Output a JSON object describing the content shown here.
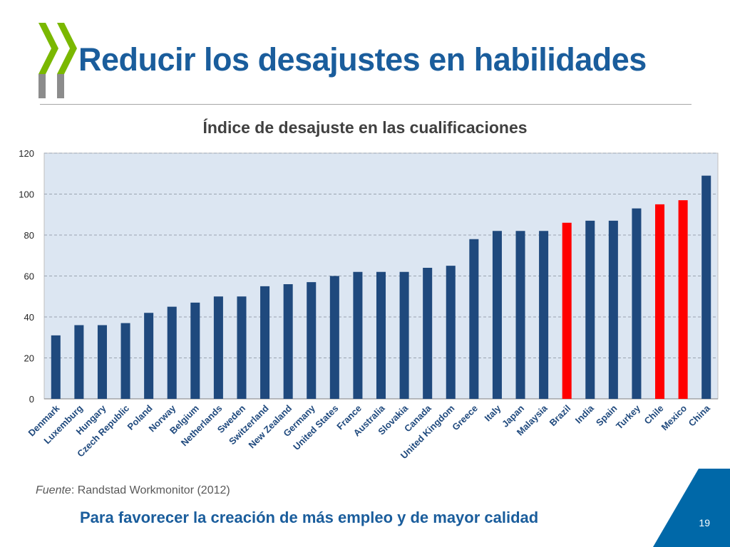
{
  "slide": {
    "title": "Reducir los desajustes en habilidades",
    "source_label": "Fuente",
    "source_text": ": Randstad Workmonitor (2012)",
    "tagline": "Para favorecer la creación de más empleo y de mayor calidad",
    "page_number": "19"
  },
  "colors": {
    "brand_blue": "#1a5d9c",
    "bar_default": "#1f497d",
    "bar_highlight": "#ff0000",
    "plot_background": "#dce6f2",
    "logo_green": "#7ab800",
    "logo_gray": "#8c8c8c",
    "corner_blue": "#0068a8"
  },
  "chart_data": {
    "type": "bar",
    "title": "Índice de desajuste en las cualificaciones",
    "xlabel": "",
    "ylabel": "",
    "ylim": [
      0,
      120
    ],
    "yticks": [
      0,
      20,
      40,
      60,
      80,
      100,
      120
    ],
    "grid": true,
    "legend": "none",
    "categories": [
      "Denmark",
      "Luxemburg",
      "Hungary",
      "Czech Republic",
      "Poland",
      "Norway",
      "Belgium",
      "Netherlands",
      "Sweden",
      "Switzerland",
      "New Zealand",
      "Germany",
      "United States",
      "France",
      "Australia",
      "Slovakia",
      "Canada",
      "United Kingdom",
      "Greece",
      "Italy",
      "Japan",
      "Malaysia",
      "Brazil",
      "India",
      "Spain",
      "Turkey",
      "Chile",
      "Mexico",
      "China"
    ],
    "values": [
      31,
      36,
      36,
      37,
      42,
      45,
      47,
      50,
      50,
      55,
      56,
      57,
      60,
      62,
      62,
      62,
      64,
      65,
      78,
      82,
      82,
      82,
      86,
      87,
      87,
      93,
      95,
      97,
      109
    ],
    "highlighted": [
      "Brazil",
      "Chile",
      "Mexico"
    ]
  }
}
